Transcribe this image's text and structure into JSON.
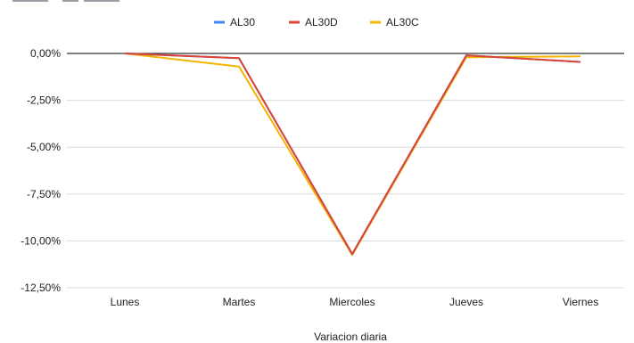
{
  "chart_data": {
    "type": "line",
    "title": "",
    "xlabel": "Variacion diaria",
    "ylabel": "",
    "categories": [
      "Lunes",
      "Martes",
      "Miercoles",
      "Jueves",
      "Viernes"
    ],
    "ylim": [
      -12.5,
      0
    ],
    "yticks": [
      0,
      -2.5,
      -5,
      -7.5,
      -10,
      -12.5
    ],
    "ytick_labels": [
      "0,00%",
      "-2,50%",
      "-5,00%",
      "-7,50%",
      "-10,00%",
      "-12,50%"
    ],
    "grid": true,
    "legend_position": "top",
    "series": [
      {
        "name": "AL30",
        "color": "#4285F4",
        "values": [
          0,
          -0.25,
          -10.7,
          -0.1,
          -0.45
        ]
      },
      {
        "name": "AL30D",
        "color": "#DB4437",
        "values": [
          0,
          -0.25,
          -10.7,
          -0.1,
          -0.45
        ]
      },
      {
        "name": "AL30C",
        "color": "#F4B400",
        "values": [
          0,
          -0.7,
          -10.75,
          -0.2,
          -0.15
        ]
      }
    ]
  }
}
